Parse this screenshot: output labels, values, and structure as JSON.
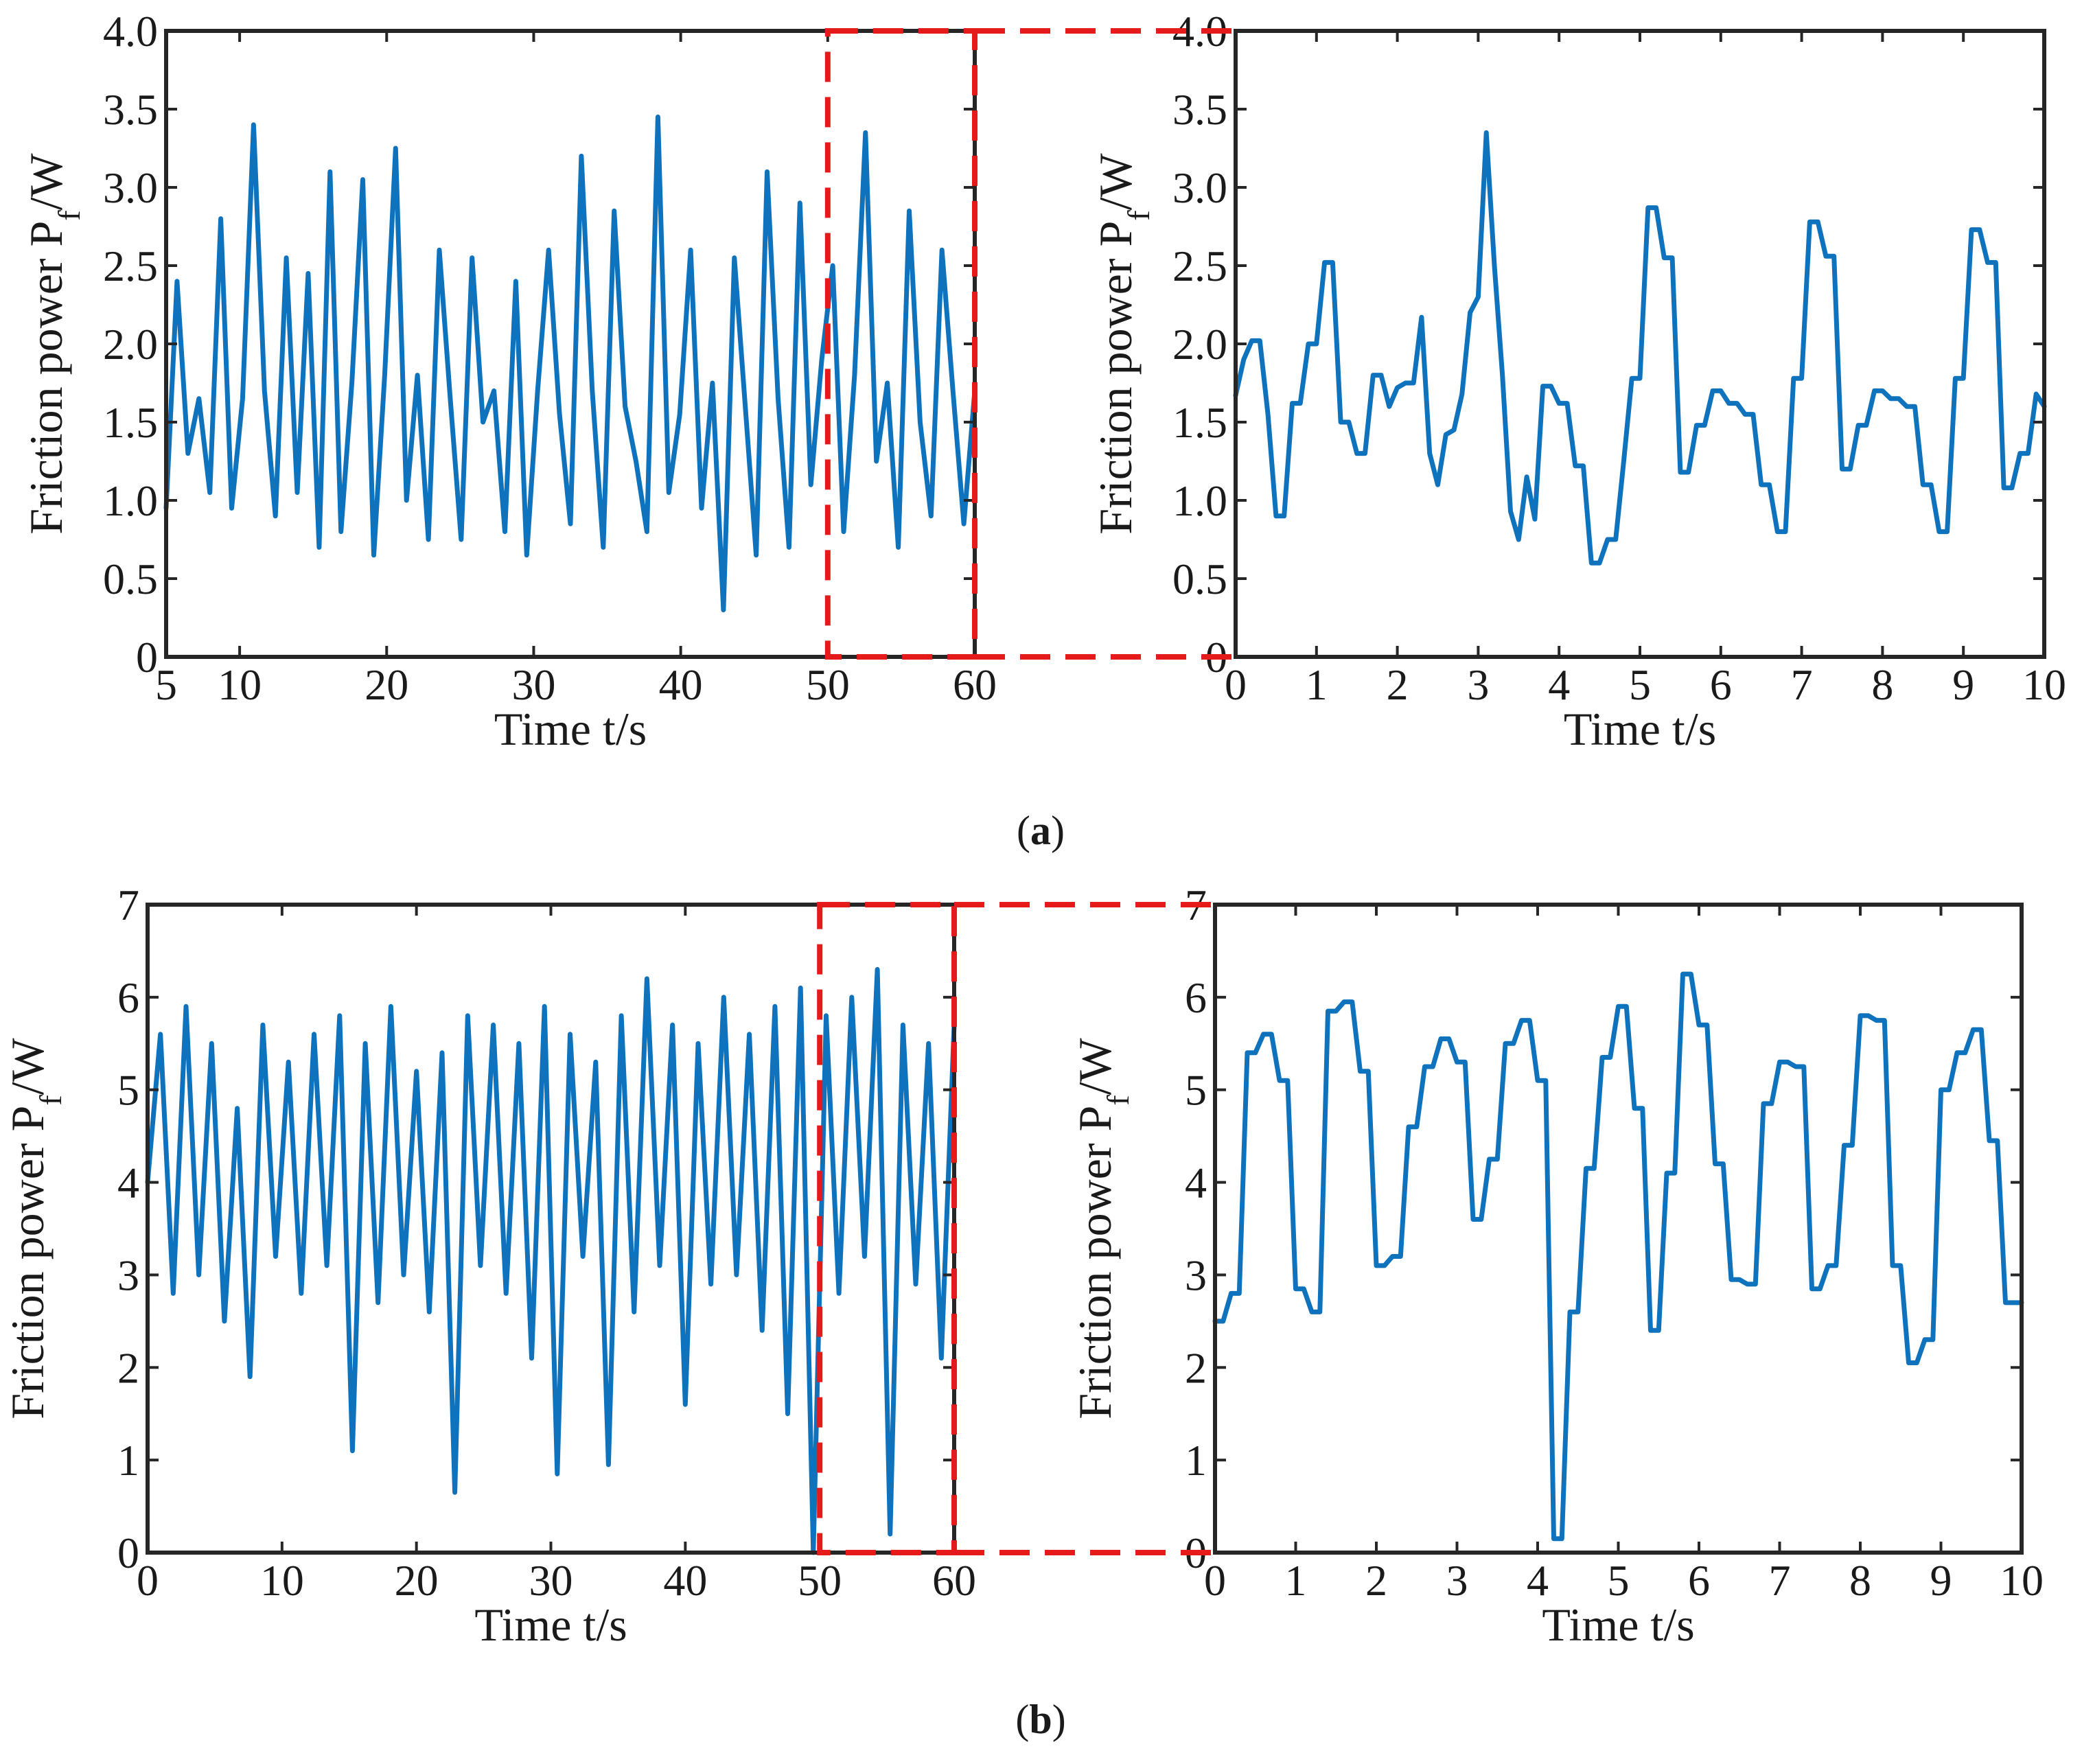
{
  "colors": {
    "line": "#0f72bd",
    "zoom": "#e51a1a",
    "axis": "#262626"
  },
  "panel_labels": [
    "a",
    "b"
  ],
  "chart_data": [
    {
      "id": "a-full",
      "type": "line",
      "panel": "a",
      "xlabel": "Time t/s",
      "ylabel_main": "Friction power P",
      "ylabel_sub": "f",
      "ylabel_tail": "/W",
      "xlim": [
        5,
        60
      ],
      "ylim": [
        0,
        4.0
      ],
      "xticks": [
        5,
        10,
        20,
        30,
        40,
        50,
        60
      ],
      "yticks": [
        0,
        0.5,
        1.0,
        1.5,
        2.0,
        2.5,
        3.0,
        3.5,
        4.0
      ],
      "ytick_labels": [
        "0",
        "0.5",
        "1.0",
        "1.5",
        "2.0",
        "2.5",
        "3.0",
        "3.5",
        "4.0"
      ],
      "zoom_range": [
        50,
        60
      ],
      "series": [
        {
          "name": "friction power",
          "x_start": 5,
          "x_end": 60,
          "values": [
            0.95,
            2.4,
            1.3,
            1.65,
            1.05,
            2.8,
            0.95,
            1.65,
            3.4,
            1.7,
            0.9,
            2.55,
            1.05,
            2.45,
            0.7,
            3.1,
            0.8,
            1.75,
            3.05,
            0.65,
            1.8,
            3.25,
            1.0,
            1.8,
            0.75,
            2.6,
            1.65,
            0.75,
            2.55,
            1.5,
            1.7,
            0.8,
            2.4,
            0.65,
            1.7,
            2.6,
            1.55,
            0.85,
            3.2,
            1.7,
            0.7,
            2.85,
            1.6,
            1.25,
            0.8,
            3.45,
            1.05,
            1.55,
            2.6,
            0.95,
            1.75,
            0.3,
            2.55,
            1.6,
            0.65,
            3.1,
            1.65,
            0.7,
            2.9,
            1.1,
            1.9,
            2.5,
            0.8,
            1.8,
            3.35,
            1.25,
            1.75,
            0.7,
            2.85,
            1.5,
            0.9,
            2.6,
            1.7,
            0.85,
            1.7
          ]
        }
      ]
    },
    {
      "id": "a-zoom",
      "type": "line",
      "panel": "a",
      "xlabel": "Time t/s",
      "ylabel_main": "Friction power P",
      "ylabel_sub": "f",
      "ylabel_tail": "/W",
      "xlim": [
        0,
        10
      ],
      "ylim": [
        0,
        4.0
      ],
      "xticks": [
        0,
        1,
        2,
        3,
        4,
        5,
        6,
        7,
        8,
        9,
        10
      ],
      "yticks": [
        0,
        0.5,
        1.0,
        1.5,
        2.0,
        2.5,
        3.0,
        3.5,
        4.0
      ],
      "ytick_labels": [
        "0",
        "0.5",
        "1.0",
        "1.5",
        "2.0",
        "2.5",
        "3.0",
        "3.5",
        "4.0"
      ],
      "series": [
        {
          "name": "friction power",
          "x": [
            0.0,
            0.1,
            0.2,
            0.3,
            0.4,
            0.5,
            0.6,
            0.7,
            0.8,
            0.9,
            1.0,
            1.1,
            1.2,
            1.3,
            1.4,
            1.5,
            1.6,
            1.7,
            1.8,
            1.9,
            2.0,
            2.1,
            2.2,
            2.3,
            2.4,
            2.5,
            2.6,
            2.7,
            2.8,
            2.9,
            3.0,
            3.1,
            3.2,
            3.3,
            3.4,
            3.5,
            3.6,
            3.7,
            3.8,
            3.9,
            4.0,
            4.1,
            4.2,
            4.3,
            4.4,
            4.5,
            4.6,
            4.7,
            4.8,
            4.9,
            5.0,
            5.1,
            5.2,
            5.3,
            5.4,
            5.5,
            5.6,
            5.7,
            5.8,
            5.9,
            6.0,
            6.1,
            6.2,
            6.3,
            6.4,
            6.5,
            6.6,
            6.7,
            6.8,
            6.9,
            7.0,
            7.1,
            7.2,
            7.3,
            7.4,
            7.5,
            7.6,
            7.7,
            7.8,
            7.9,
            8.0,
            8.1,
            8.2,
            8.3,
            8.4,
            8.5,
            8.6,
            8.7,
            8.8,
            8.9,
            9.0,
            9.1,
            9.2,
            9.3,
            9.4,
            9.5,
            9.6,
            9.7,
            9.8,
            9.9,
            10.0
          ],
          "y": [
            1.67,
            1.9,
            2.02,
            2.02,
            1.55,
            0.9,
            0.9,
            1.62,
            1.62,
            2.0,
            2.0,
            2.52,
            2.52,
            1.5,
            1.5,
            1.3,
            1.3,
            1.8,
            1.8,
            1.6,
            1.72,
            1.75,
            1.75,
            2.17,
            1.3,
            1.1,
            1.42,
            1.45,
            1.68,
            2.2,
            2.3,
            3.35,
            2.5,
            1.8,
            0.93,
            0.75,
            1.15,
            0.88,
            1.73,
            1.73,
            1.62,
            1.62,
            1.22,
            1.22,
            0.6,
            0.6,
            0.75,
            0.75,
            1.25,
            1.78,
            1.78,
            2.87,
            2.87,
            2.55,
            2.55,
            1.18,
            1.18,
            1.48,
            1.48,
            1.7,
            1.7,
            1.62,
            1.62,
            1.55,
            1.55,
            1.1,
            1.1,
            0.8,
            0.8,
            1.78,
            1.78,
            2.78,
            2.78,
            2.56,
            2.56,
            1.2,
            1.2,
            1.48,
            1.48,
            1.7,
            1.7,
            1.65,
            1.65,
            1.6,
            1.6,
            1.1,
            1.1,
            0.8,
            0.8,
            1.78,
            1.78,
            2.73,
            2.73,
            2.52,
            2.52,
            1.08,
            1.08,
            1.3,
            1.3,
            1.68,
            1.6
          ]
        }
      ]
    },
    {
      "id": "b-full",
      "type": "line",
      "panel": "b",
      "xlabel": "Time t/s",
      "ylabel_main": "Friction power P",
      "ylabel_sub": "f",
      "ylabel_tail": "/W",
      "xlim": [
        0,
        60
      ],
      "ylim": [
        0,
        7
      ],
      "xticks": [
        0,
        10,
        20,
        30,
        40,
        50,
        60
      ],
      "yticks": [
        0,
        1,
        2,
        3,
        4,
        5,
        6,
        7
      ],
      "ytick_labels": [
        "0",
        "1",
        "2",
        "3",
        "4",
        "5",
        "6",
        "7"
      ],
      "zoom_range": [
        50,
        60
      ],
      "series": [
        {
          "name": "friction power",
          "x_start": 0,
          "x_end": 60,
          "values": [
            4.0,
            5.6,
            2.8,
            5.9,
            3.0,
            5.5,
            2.5,
            4.8,
            1.9,
            5.7,
            3.2,
            5.3,
            2.8,
            5.6,
            3.1,
            5.8,
            1.1,
            5.5,
            2.7,
            5.9,
            3.0,
            5.2,
            2.6,
            5.4,
            0.65,
            5.8,
            3.1,
            5.7,
            2.8,
            5.5,
            2.1,
            5.9,
            0.85,
            5.6,
            3.2,
            5.3,
            0.95,
            5.8,
            2.6,
            6.2,
            3.1,
            5.7,
            1.6,
            5.5,
            2.9,
            6.0,
            3.0,
            5.6,
            2.4,
            5.9,
            1.5,
            6.1,
            0.0,
            5.8,
            2.8,
            6.0,
            3.2,
            6.3,
            0.2,
            5.7,
            2.9,
            5.5,
            2.1,
            5.7
          ]
        }
      ]
    },
    {
      "id": "b-zoom",
      "type": "line",
      "panel": "b",
      "xlabel": "Time t/s",
      "ylabel_main": "Friction power P",
      "ylabel_sub": "f",
      "ylabel_tail": "/W",
      "xlim": [
        0,
        10
      ],
      "ylim": [
        0,
        7
      ],
      "xticks": [
        0,
        1,
        2,
        3,
        4,
        5,
        6,
        7,
        8,
        9,
        10
      ],
      "yticks": [
        0,
        1,
        2,
        3,
        4,
        5,
        6,
        7
      ],
      "ytick_labels": [
        "0",
        "1",
        "2",
        "3",
        "4",
        "5",
        "6",
        "7"
      ],
      "series": [
        {
          "name": "friction power",
          "x": [
            0.0,
            0.1,
            0.2,
            0.3,
            0.4,
            0.5,
            0.6,
            0.7,
            0.8,
            0.9,
            1.0,
            1.1,
            1.2,
            1.3,
            1.4,
            1.5,
            1.6,
            1.7,
            1.8,
            1.9,
            2.0,
            2.1,
            2.2,
            2.3,
            2.4,
            2.5,
            2.6,
            2.7,
            2.8,
            2.9,
            3.0,
            3.1,
            3.2,
            3.3,
            3.4,
            3.5,
            3.6,
            3.7,
            3.8,
            3.9,
            4.0,
            4.1,
            4.2,
            4.3,
            4.4,
            4.5,
            4.6,
            4.7,
            4.8,
            4.9,
            5.0,
            5.1,
            5.2,
            5.3,
            5.4,
            5.5,
            5.6,
            5.7,
            5.8,
            5.9,
            6.0,
            6.1,
            6.2,
            6.3,
            6.4,
            6.5,
            6.6,
            6.7,
            6.8,
            6.9,
            7.0,
            7.1,
            7.2,
            7.3,
            7.4,
            7.5,
            7.6,
            7.7,
            7.8,
            7.9,
            8.0,
            8.1,
            8.2,
            8.3,
            8.4,
            8.5,
            8.6,
            8.7,
            8.8,
            8.9,
            9.0,
            9.1,
            9.2,
            9.3,
            9.4,
            9.5,
            9.6,
            9.7,
            9.8,
            9.9,
            10.0
          ],
          "y": [
            2.5,
            2.5,
            2.8,
            2.8,
            5.4,
            5.4,
            5.6,
            5.6,
            5.1,
            5.1,
            2.85,
            2.85,
            2.6,
            2.6,
            5.85,
            5.85,
            5.95,
            5.95,
            5.2,
            5.2,
            3.1,
            3.1,
            3.2,
            3.2,
            4.6,
            4.6,
            5.25,
            5.25,
            5.55,
            5.55,
            5.3,
            5.3,
            3.6,
            3.6,
            4.25,
            4.25,
            5.5,
            5.5,
            5.75,
            5.75,
            5.1,
            5.1,
            0.15,
            0.15,
            2.6,
            2.6,
            4.15,
            4.15,
            5.35,
            5.35,
            5.9,
            5.9,
            4.8,
            4.8,
            2.4,
            2.4,
            4.1,
            4.1,
            6.25,
            6.25,
            5.7,
            5.7,
            4.2,
            4.2,
            2.95,
            2.95,
            2.9,
            2.9,
            4.85,
            4.85,
            5.3,
            5.3,
            5.25,
            5.25,
            2.85,
            2.85,
            3.1,
            3.1,
            4.4,
            4.4,
            5.8,
            5.8,
            5.75,
            5.75,
            3.1,
            3.1,
            2.05,
            2.05,
            2.3,
            2.3,
            5.0,
            5.0,
            5.4,
            5.4,
            5.65,
            5.65,
            4.45,
            4.45,
            2.7,
            2.7,
            2.7
          ]
        }
      ]
    }
  ]
}
